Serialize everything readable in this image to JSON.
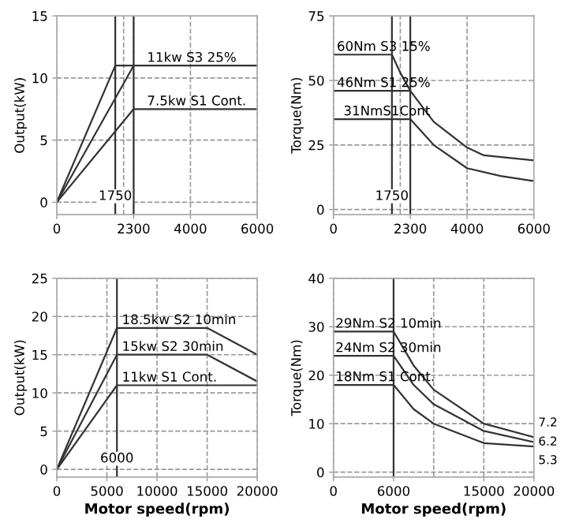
{
  "chart_data": [
    {
      "type": "line",
      "ylabel": "Output(kW)",
      "xlim": [
        0,
        6000
      ],
      "ylim": [
        -1,
        15
      ],
      "xticks": [
        0,
        2300,
        4000,
        6000
      ],
      "yticks": [
        0,
        5,
        10,
        15
      ],
      "grid": true,
      "line_style": "solid",
      "marker": "none",
      "series": [
        {
          "color": "#333333",
          "x": [
            0,
            1750,
            6000
          ],
          "values": [
            0,
            11,
            11
          ]
        },
        {
          "color": "#333333",
          "x": [
            0,
            2300
          ],
          "values": [
            0,
            11
          ]
        },
        {
          "color": "#333333",
          "x": [
            0,
            2300,
            6000
          ],
          "values": [
            0,
            7.5,
            7.5
          ]
        }
      ],
      "ref_lines": [
        {
          "axis": "x",
          "value": 1750,
          "label": "1750",
          "color": "#333333"
        },
        {
          "axis": "x",
          "value": 2300,
          "color": "#333333"
        },
        {
          "axis": "x",
          "value": 2000,
          "color": "#999999",
          "line_style": "dashed"
        }
      ],
      "annotations": [
        {
          "text": "11kw S3 25%",
          "x": 2700,
          "y": 11
        },
        {
          "text": "7.5kw S1 Cont.",
          "x": 2700,
          "y": 7.5
        }
      ]
    },
    {
      "type": "line",
      "ylabel": "Torque(Nm)",
      "xlim": [
        0,
        6000
      ],
      "ylim": [
        -2,
        75
      ],
      "xticks": [
        0,
        2300,
        4000,
        6000
      ],
      "yticks": [
        0,
        25,
        50,
        75
      ],
      "grid": true,
      "line_style": "solid",
      "marker": "none",
      "series": [
        {
          "color": "#333333",
          "x": [
            0,
            1750,
            2000,
            2300,
            3000,
            4000,
            4500,
            6000
          ],
          "values": [
            60,
            60,
            53,
            46,
            34,
            24,
            21,
            19
          ]
        },
        {
          "color": "#333333",
          "x": [
            0,
            2300
          ],
          "values": [
            46,
            46
          ]
        },
        {
          "color": "#333333",
          "x": [
            0,
            2300,
            3000,
            4000,
            5000,
            6000
          ],
          "values": [
            35,
            35,
            25,
            16,
            13,
            11
          ]
        }
      ],
      "ref_lines": [
        {
          "axis": "x",
          "value": 1750,
          "label": "1750",
          "color": "#333333"
        },
        {
          "axis": "x",
          "value": 2300,
          "color": "#333333"
        },
        {
          "axis": "x",
          "value": 2000,
          "color": "#999999",
          "line_style": "dashed"
        }
      ],
      "annotations": [
        {
          "text": "60Nm S3 15%",
          "x": 100,
          "y": 60
        },
        {
          "text": "46Nm S1 25%",
          "x": 100,
          "y": 46
        },
        {
          "text": "31NmS1Cont",
          "x": 300,
          "y": 35
        }
      ]
    },
    {
      "type": "line",
      "xlabel": "Motor speed(rpm)",
      "ylabel": "Output(kW)",
      "xlim": [
        0,
        20000
      ],
      "ylim": [
        -1,
        25
      ],
      "xticks": [
        0,
        5000,
        10000,
        15000,
        20000
      ],
      "yticks": [
        0,
        5,
        10,
        15,
        20,
        25
      ],
      "grid": true,
      "line_style": "solid",
      "marker": "none",
      "series": [
        {
          "color": "#333333",
          "x": [
            0,
            6000,
            15000,
            20000
          ],
          "values": [
            0,
            18.5,
            18.5,
            15
          ]
        },
        {
          "color": "#333333",
          "x": [
            0,
            6000,
            15000,
            20000
          ],
          "values": [
            0,
            15,
            15,
            11.5
          ]
        },
        {
          "color": "#333333",
          "x": [
            0,
            6000,
            20000
          ],
          "values": [
            0,
            11,
            11
          ]
        }
      ],
      "ref_lines": [
        {
          "axis": "x",
          "value": 6000,
          "label": "6000",
          "color": "#333333"
        }
      ],
      "annotations": [
        {
          "text": "18.5kw S2 10min",
          "x": 6500,
          "y": 18.5
        },
        {
          "text": "15kw S2 30min",
          "x": 6500,
          "y": 15
        },
        {
          "text": "11kw S1 Cont.",
          "x": 6500,
          "y": 11
        }
      ]
    },
    {
      "type": "line",
      "xlabel": "Motor speed(rpm)",
      "ylabel": "Torque(Nm)",
      "xlim": [
        0,
        20000
      ],
      "ylim": [
        -1,
        40
      ],
      "xticks": [
        0,
        6000,
        15000,
        20000
      ],
      "yticks": [
        0,
        10,
        20,
        30,
        40
      ],
      "grid": true,
      "line_style": "solid",
      "marker": "none",
      "series": [
        {
          "color": "#333333",
          "x": [
            0,
            6000,
            8000,
            10000,
            15000,
            20000
          ],
          "values": [
            29,
            29,
            22,
            17,
            10,
            7.2
          ]
        },
        {
          "color": "#333333",
          "x": [
            0,
            6000,
            8000,
            10000,
            15000,
            20000
          ],
          "values": [
            24,
            24,
            18,
            14,
            8.5,
            6.2
          ]
        },
        {
          "color": "#333333",
          "x": [
            0,
            6000,
            8000,
            10000,
            15000,
            20000
          ],
          "values": [
            18,
            18,
            13,
            10,
            6,
            5.3
          ]
        }
      ],
      "ref_lines": [
        {
          "axis": "x",
          "value": 6000,
          "color": "#333333"
        },
        {
          "axis": "x",
          "value": 10000,
          "color": "#999999",
          "line_style": "dashed"
        }
      ],
      "annotations": [
        {
          "text": "29Nm S2 10min",
          "x": 200,
          "y": 29
        },
        {
          "text": "24Nm S2 30min",
          "x": 200,
          "y": 24
        },
        {
          "text": "18Nm S1 Cont.",
          "x": 200,
          "y": 18
        },
        {
          "text": "7.2",
          "x": 20000,
          "y": 7.2
        },
        {
          "text": "6.2",
          "x": 20000,
          "y": 6.2
        },
        {
          "text": "5.3",
          "x": 20000,
          "y": 5.3
        }
      ]
    }
  ]
}
